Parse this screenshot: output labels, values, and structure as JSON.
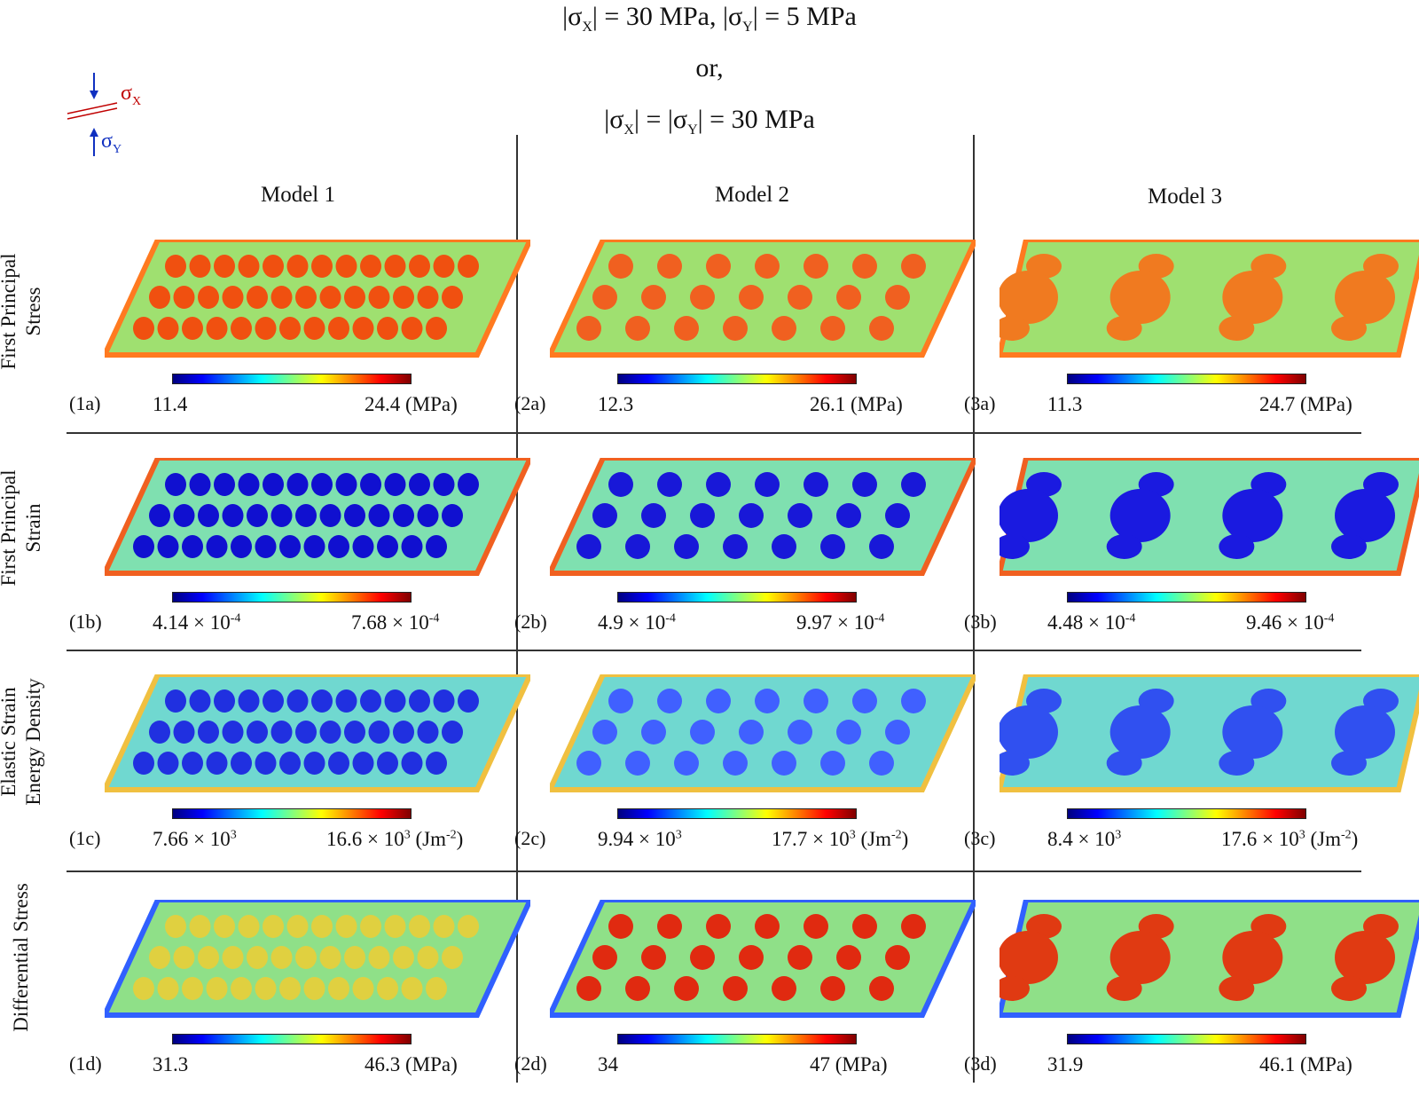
{
  "header": {
    "line1": "|σX| = 30 MPa, |σY| = 5 MPa",
    "line2": "or,",
    "line3": "|σX| = |σY| = 30 MPa"
  },
  "legend": {
    "sigma_x": "σX",
    "sigma_y": "σY",
    "color_x": "#c00000",
    "color_y": "#1030c0"
  },
  "models": [
    "Model 1",
    "Model 2",
    "Model 3"
  ],
  "rows": [
    {
      "label": "First Principal Stress",
      "panels": [
        {
          "id": "(1a)",
          "min": "11.4",
          "max": "24.4 (MPa)"
        },
        {
          "id": "(2a)",
          "min": "12.3",
          "max": "26.1 (MPa)"
        },
        {
          "id": "(3a)",
          "min": "11.3",
          "max": "24.7 (MPa)"
        }
      ]
    },
    {
      "label": "First Principal Strain",
      "panels": [
        {
          "id": "(1b)",
          "min_base": "4.14 × 10",
          "min_exp": "-4",
          "max_base": "7.68 × 10",
          "max_exp": "-4"
        },
        {
          "id": "(2b)",
          "min_base": "4.9 × 10",
          "min_exp": "-4",
          "max_base": "9.97 × 10",
          "max_exp": "-4"
        },
        {
          "id": "(3b)",
          "min_base": "4.48 × 10",
          "min_exp": "-4",
          "max_base": "9.46 × 10",
          "max_exp": "-4"
        }
      ]
    },
    {
      "label": "Elastic Strain Energy Density",
      "panels": [
        {
          "id": "(1c)",
          "min_base": "7.66 × 10",
          "min_exp": "3",
          "max_base": "16.6 × 10",
          "max_exp": "3",
          "unit_pre": " (Jm",
          "unit_exp": "-2",
          "unit_post": ")"
        },
        {
          "id": "(2c)",
          "min_base": "9.94 × 10",
          "min_exp": "3",
          "max_base": "17.7 × 10",
          "max_exp": "3",
          "unit_pre": " (Jm",
          "unit_exp": "-2",
          "unit_post": ")"
        },
        {
          "id": "(3c)",
          "min_base": "8.4 × 10",
          "min_exp": "3",
          "max_base": "17.6 × 10",
          "max_exp": "3",
          "unit_pre": " (Jm",
          "unit_exp": "-2",
          "unit_post": ")"
        }
      ]
    },
    {
      "label": "Differential Stress",
      "panels": [
        {
          "id": "(1d)",
          "min": "31.3",
          "max": "46.3 (MPa)"
        },
        {
          "id": "(2d)",
          "min": "34",
          "max": "47 (MPa)"
        },
        {
          "id": "(3d)",
          "min": "31.9",
          "max": "46.1 (MPa)"
        }
      ]
    }
  ],
  "colormap": [
    "#00007f",
    "#0000ff",
    "#0080ff",
    "#00ffff",
    "#80ff80",
    "#ffff00",
    "#ff8000",
    "#ff0000",
    "#7f0000"
  ]
}
